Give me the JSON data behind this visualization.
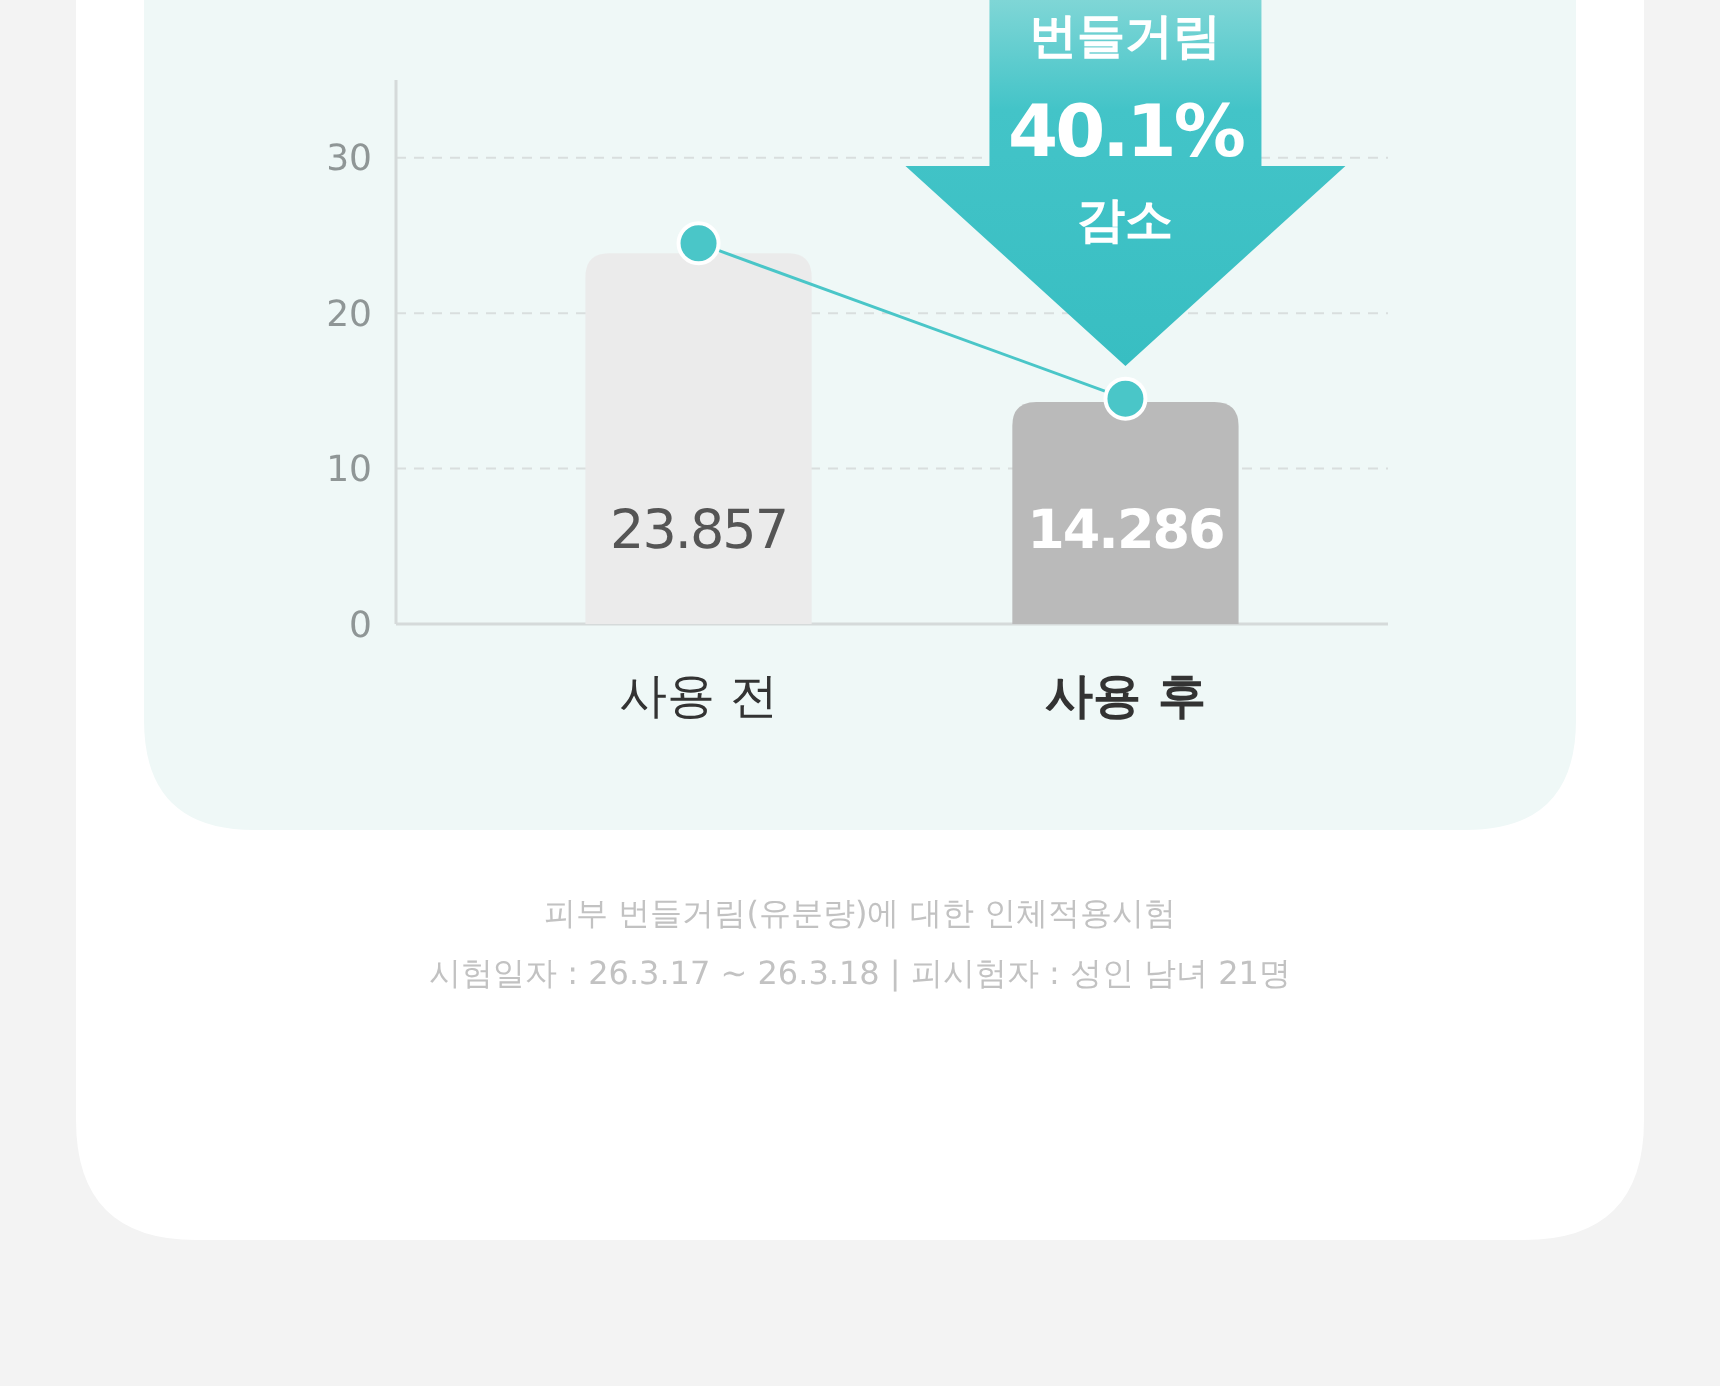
{
  "chart_data": {
    "type": "bar",
    "categories": [
      "사용 전",
      "사용 후"
    ],
    "series": [
      {
        "colors": [
          "#ebebeb",
          "#bababa"
        ],
        "values": [
          23.857,
          14.286
        ],
        "value_labels": [
          "23.857",
          "14.286"
        ]
      },
      {
        "type": "line",
        "color": "#4ac6c8",
        "values": [
          24.5,
          14.5
        ],
        "marker": "circle"
      }
    ],
    "ylim": [
      0,
      35
    ],
    "yticks": [
      0,
      10,
      20,
      30
    ],
    "grid": "y",
    "annotations": [
      {
        "text": "번들거림 40.1% 감소",
        "x": "사용 후",
        "y": 14.286
      },
      "피부 번들거림(유분량)에 대한 인체적용시험",
      "시험일자 : 26.3.17 ~ 26.3.18 | 피시험자 : 성인 남녀 21명"
    ]
  }
}
